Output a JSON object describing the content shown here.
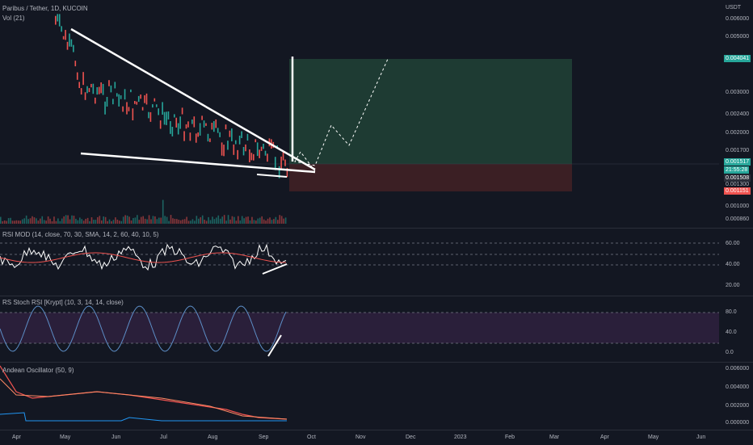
{
  "header": {
    "symbol": "Paribus / Tether, 1D, KUCOIN",
    "vol": "Vol (21)",
    "currency": "USDT"
  },
  "price_axis": [
    "0.006000",
    "0.005000",
    "0.003000",
    "0.002400",
    "0.002000",
    "0.001700",
    "0.001300",
    "0.001000",
    "0.000860"
  ],
  "price_tags": {
    "target": "0.004041",
    "current": "0.001517",
    "countdown": "21:55:28",
    "entry": "0.001508",
    "stop": "0.001151"
  },
  "rsi": {
    "label": "RSI MOD (14, close, 70, 30, SMA, 14, 2, 60, 40, 10, 5)",
    "levels": [
      "60.00",
      "40.00",
      "20.00"
    ]
  },
  "stoch": {
    "label": "RS Stoch RSI [Krypt] (10, 3, 14, 14, close)",
    "levels": [
      "80.0",
      "40.0",
      "0.0"
    ]
  },
  "andean": {
    "label": "Andean Oscillator (50, 9)",
    "levels": [
      "0.006000",
      "0.004000",
      "0.002000",
      "0.000000"
    ]
  },
  "months": [
    "Apr",
    "May",
    "Jun",
    "Jul",
    "Aug",
    "Sep",
    "Oct",
    "Nov",
    "Dec",
    "2023",
    "Feb",
    "Mar",
    "Apr",
    "May",
    "Jun"
  ],
  "colors": {
    "bg": "#131722",
    "up": "#26a69a",
    "down": "#ef5350",
    "target_zone": "#1e3b33",
    "stop_zone": "#3b1f24",
    "trendline": "#ffffff",
    "rsi_line": "#ffffff",
    "signal_line": "#ef5350",
    "stoch_bg": "#2a1f3a",
    "andean_bull": "#ef5350",
    "andean_bear": "#2962ff"
  }
}
